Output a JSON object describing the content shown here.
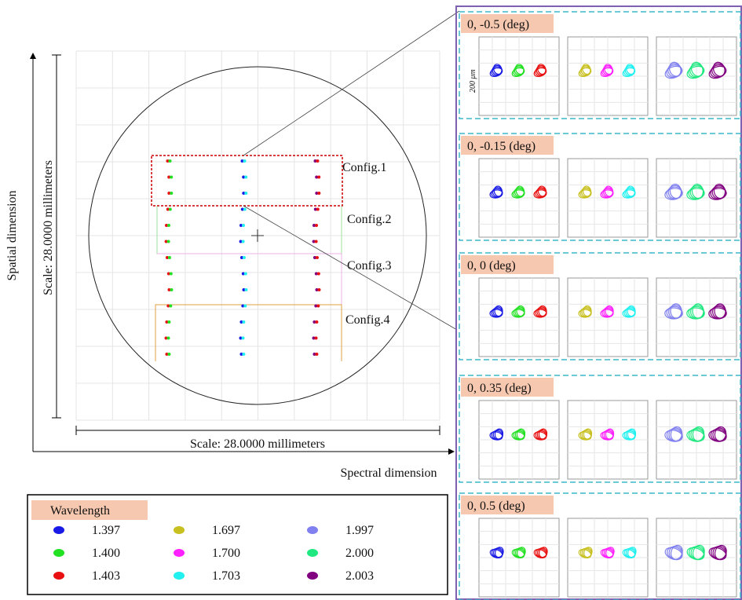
{
  "axes": {
    "y_label": "Spatial dimension",
    "x_label": "Spectral dimension",
    "y_scale": "Scale: 28.0000 millimeters",
    "x_scale": "Scale: 28.0000 millimeters"
  },
  "configs": [
    "Config.1",
    "Config.2",
    "Config.3",
    "Config.4"
  ],
  "panels": [
    "0, -0.5 (deg)",
    "0, -0.15 (deg)",
    "0, 0 (deg)",
    "0, 0.35 (deg)",
    "0, 0.5 (deg)"
  ],
  "scale_bar": "200 μm",
  "legend": {
    "title": "Wavelength",
    "items": [
      {
        "label": "1.397",
        "color": "#1a1ae6"
      },
      {
        "label": "1.400",
        "color": "#22e022"
      },
      {
        "label": "1.403",
        "color": "#e81010"
      },
      {
        "label": "1.697",
        "color": "#c8c020"
      },
      {
        "label": "1.700",
        "color": "#ff20ff"
      },
      {
        "label": "1.703",
        "color": "#20f0f0"
      },
      {
        "label": "1.997",
        "color": "#8080f0"
      },
      {
        "label": "2.000",
        "color": "#20e880"
      },
      {
        "label": "2.003",
        "color": "#800080"
      }
    ]
  }
}
